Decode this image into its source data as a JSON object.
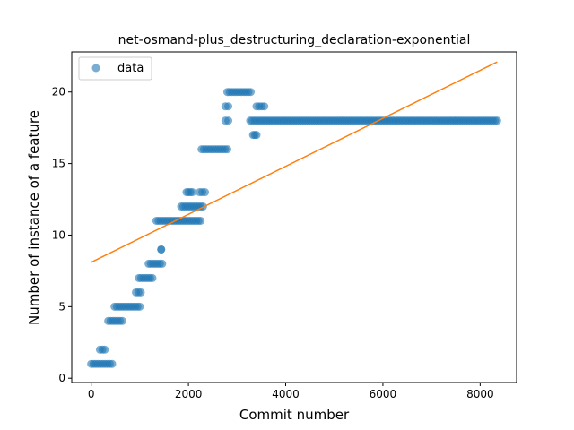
{
  "chart_data": {
    "type": "scatter",
    "title": "net-osmand-plus_destructuring_declaration-exponential",
    "xlabel": "Commit number",
    "ylabel": "Number of instance of a feature",
    "xlim": [
      -400,
      8750
    ],
    "ylim": [
      -0.3,
      22.8
    ],
    "xticks": [
      0,
      2000,
      4000,
      6000,
      8000
    ],
    "yticks": [
      0,
      5,
      10,
      15,
      20
    ],
    "legend": {
      "placement": "top-left",
      "entries": [
        "data"
      ]
    },
    "grid": false,
    "colors": {
      "data": "#1f77b4",
      "fit": "#ff7f0e"
    },
    "series": [
      {
        "name": "data",
        "kind": "scatter",
        "segments": [
          {
            "x_start": 0,
            "x_end": 430,
            "y": 1
          },
          {
            "x_start": 180,
            "x_end": 280,
            "y": 2
          },
          {
            "x_start": 350,
            "x_end": 640,
            "y": 4
          },
          {
            "x_start": 480,
            "x_end": 1000,
            "y": 5
          },
          {
            "x_start": 920,
            "x_end": 1020,
            "y": 6
          },
          {
            "x_start": 980,
            "x_end": 1260,
            "y": 7
          },
          {
            "x_start": 1180,
            "x_end": 1460,
            "y": 8
          },
          {
            "x_start": 1440,
            "x_end": 1440,
            "y": 9
          },
          {
            "x_start": 1340,
            "x_end": 2250,
            "y": 11
          },
          {
            "x_start": 1850,
            "x_end": 2300,
            "y": 12
          },
          {
            "x_start": 1960,
            "x_end": 2080,
            "y": 13
          },
          {
            "x_start": 2230,
            "x_end": 2340,
            "y": 13
          },
          {
            "x_start": 2270,
            "x_end": 2800,
            "y": 16
          },
          {
            "x_start": 2760,
            "x_end": 2820,
            "y": 18
          },
          {
            "x_start": 2760,
            "x_end": 2820,
            "y": 19
          },
          {
            "x_start": 2800,
            "x_end": 3280,
            "y": 20
          },
          {
            "x_start": 3270,
            "x_end": 8350,
            "y": 18
          },
          {
            "x_start": 3330,
            "x_end": 3400,
            "y": 17
          },
          {
            "x_start": 3400,
            "x_end": 3560,
            "y": 19
          }
        ]
      },
      {
        "name": "fit",
        "kind": "line",
        "x": [
          0,
          8350
        ],
        "y": [
          8.1,
          22.1
        ]
      }
    ]
  }
}
